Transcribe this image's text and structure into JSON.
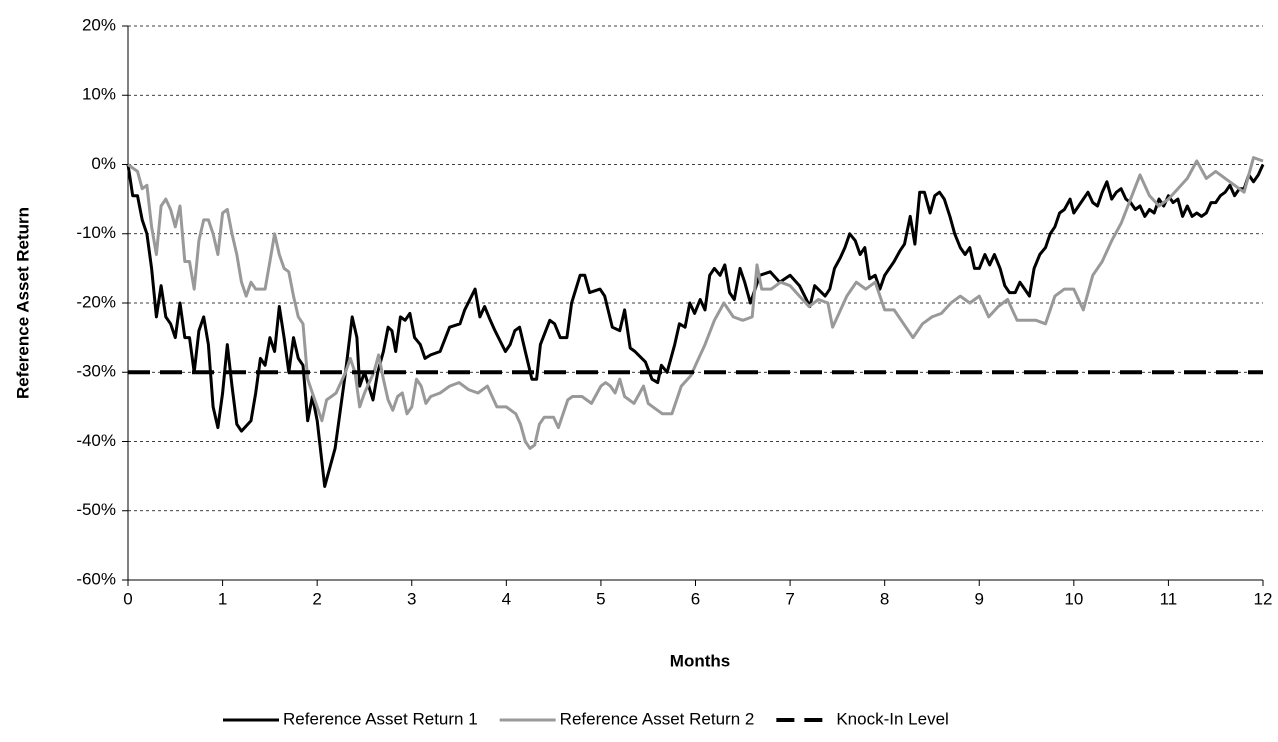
{
  "chart_data": {
    "type": "line",
    "xlabel": "Months",
    "ylabel": "Reference Asset Return",
    "xlim": [
      0,
      12
    ],
    "xticks": [
      0,
      1,
      2,
      3,
      4,
      5,
      6,
      7,
      8,
      9,
      10,
      11,
      12
    ],
    "ylim": [
      -60,
      20
    ],
    "yticks": [
      {
        "value": -60,
        "label": "-60%"
      },
      {
        "value": -50,
        "label": "-50%"
      },
      {
        "value": -40,
        "label": "-40%"
      },
      {
        "value": -30,
        "label": "-30%"
      },
      {
        "value": -20,
        "label": "-20%"
      },
      {
        "value": -10,
        "label": "-10%"
      },
      {
        "value": 0,
        "label": "0%"
      },
      {
        "value": 10,
        "label": "10%"
      },
      {
        "value": 20,
        "label": "20%"
      }
    ],
    "grid": true,
    "legend": "bottom",
    "series": [
      {
        "name": "Reference Asset Return 1",
        "color": "#000000",
        "line_style": "solid",
        "x": [
          0,
          0.05,
          0.1,
          0.15,
          0.2,
          0.25,
          0.3,
          0.35,
          0.4,
          0.45,
          0.5,
          0.55,
          0.6,
          0.65,
          0.7,
          0.75,
          0.8,
          0.85,
          0.9,
          0.95,
          1.0,
          1.05,
          1.1,
          1.15,
          1.2,
          1.3,
          1.35,
          1.4,
          1.45,
          1.5,
          1.55,
          1.6,
          1.65,
          1.7,
          1.75,
          1.8,
          1.85,
          1.9,
          1.95,
          2.0,
          2.08,
          2.19,
          2.3,
          2.37,
          2.42,
          2.45,
          2.5,
          2.59,
          2.64,
          2.7,
          2.75,
          2.79,
          2.83,
          2.88,
          2.93,
          2.98,
          3.03,
          3.09,
          3.14,
          3.2,
          3.3,
          3.4,
          3.51,
          3.56,
          3.67,
          3.72,
          3.77,
          3.83,
          3.88,
          3.99,
          4.04,
          4.09,
          4.14,
          4.2,
          4.27,
          4.32,
          4.36,
          4.46,
          4.51,
          4.57,
          4.64,
          4.69,
          4.78,
          4.83,
          4.88,
          4.99,
          5.04,
          5.12,
          5.2,
          5.25,
          5.31,
          5.36,
          5.47,
          5.54,
          5.6,
          5.64,
          5.7,
          5.78,
          5.83,
          5.89,
          5.94,
          5.99,
          6.05,
          6.1,
          6.15,
          6.2,
          6.26,
          6.31,
          6.36,
          6.41,
          6.47,
          6.52,
          6.58,
          6.68,
          6.79,
          6.89,
          7.0,
          7.1,
          7.21,
          7.26,
          7.37,
          7.42,
          7.47,
          7.53,
          7.58,
          7.63,
          7.69,
          7.74,
          7.79,
          7.84,
          7.9,
          7.95,
          8.0,
          8.05,
          8.1,
          8.16,
          8.21,
          8.27,
          8.32,
          8.37,
          8.42,
          8.48,
          8.53,
          8.58,
          8.63,
          8.69,
          8.74,
          8.8,
          8.85,
          8.9,
          8.95,
          9.0,
          9.06,
          9.11,
          9.16,
          9.22,
          9.27,
          9.32,
          9.38,
          9.43,
          9.48,
          9.53,
          9.58,
          9.64,
          9.7,
          9.75,
          9.8,
          9.85,
          9.9,
          9.96,
          10.0,
          10.05,
          10.1,
          10.15,
          10.2,
          10.25,
          10.3,
          10.35,
          10.4,
          10.45,
          10.5,
          10.55,
          10.6,
          10.65,
          10.7,
          10.75,
          10.8,
          10.85,
          10.9,
          10.95,
          11.0,
          11.05,
          11.1,
          11.15,
          11.2,
          11.25,
          11.3,
          11.35,
          11.4,
          11.45,
          11.5,
          11.55,
          11.6,
          11.65,
          11.7,
          11.75,
          11.8,
          11.85,
          11.9,
          11.95,
          12.0
        ],
        "values": [
          0,
          -4.5,
          -4.5,
          -8,
          -10,
          -15,
          -22,
          -17.5,
          -22,
          -23,
          -25,
          -20,
          -25,
          -25,
          -30,
          -24,
          -22,
          -26,
          -35,
          -38,
          -33,
          -26,
          -32,
          -37.5,
          -38.5,
          -37,
          -33,
          -28,
          -29,
          -25,
          -27,
          -20.5,
          -25,
          -30,
          -25,
          -28,
          -29,
          -37,
          -33.5,
          -37,
          -46.5,
          -41,
          -30,
          -22,
          -25,
          -32,
          -30,
          -34,
          -30,
          -27,
          -23.5,
          -24,
          -27,
          -22,
          -22.5,
          -21.5,
          -25,
          -26,
          -28,
          -27.5,
          -27,
          -23.5,
          -23,
          -21,
          -18,
          -22,
          -20.5,
          -22.5,
          -24,
          -27,
          -26,
          -24,
          -23.5,
          -27,
          -31,
          -31,
          -26,
          -22.5,
          -23,
          -25,
          -25,
          -20,
          -16,
          -16,
          -18.5,
          -18,
          -19,
          -23.5,
          -24,
          -21,
          -26.5,
          -27,
          -28.5,
          -31,
          -31.5,
          -29,
          -30,
          -26,
          -23,
          -23.5,
          -20,
          -21.5,
          -19.5,
          -21,
          -16,
          -15,
          -16,
          -14.5,
          -18.5,
          -19.5,
          -15,
          -17,
          -20,
          -16,
          -15.5,
          -17,
          -16,
          -17.5,
          -20.5,
          -17.5,
          -19,
          -18,
          -15,
          -13.5,
          -12,
          -10,
          -11,
          -13,
          -12,
          -16.5,
          -16,
          -18,
          -16,
          -15,
          -14,
          -12.5,
          -11.5,
          -7.5,
          -11.5,
          -4,
          -4,
          -7,
          -4.5,
          -4,
          -5,
          -7.5,
          -10,
          -12,
          -13,
          -12,
          -15,
          -15,
          -13,
          -14.5,
          -13,
          -15,
          -17.5,
          -18.5,
          -18.5,
          -17,
          -18,
          -19,
          -15,
          -13,
          -12,
          -10,
          -9,
          -7,
          -6.5,
          -5,
          -7,
          -6,
          -5,
          -4,
          -5.5,
          -6,
          -4,
          -2.5,
          -5,
          -4,
          -3.5,
          -5,
          -5.5,
          -6.5,
          -6,
          -7.5,
          -6.5,
          -7,
          -5,
          -6,
          -4.5,
          -5.5,
          -5,
          -7.5,
          -6,
          -7.5,
          -7,
          -7.5,
          -7,
          -5.5,
          -5.5,
          -4.5,
          -4,
          -3,
          -4.5,
          -3.5,
          -3.5,
          -1.5,
          -2.5,
          -1.5,
          0
        ]
      },
      {
        "name": "Reference Asset Return 2",
        "color": "#999999",
        "line_style": "solid",
        "x": [
          0,
          0.05,
          0.1,
          0.15,
          0.2,
          0.25,
          0.3,
          0.35,
          0.4,
          0.45,
          0.5,
          0.55,
          0.6,
          0.65,
          0.7,
          0.75,
          0.8,
          0.85,
          0.9,
          0.95,
          1.0,
          1.05,
          1.1,
          1.15,
          1.2,
          1.25,
          1.3,
          1.35,
          1.45,
          1.5,
          1.55,
          1.6,
          1.65,
          1.7,
          1.75,
          1.8,
          1.85,
          1.9,
          1.95,
          2.0,
          2.05,
          2.1,
          2.15,
          2.2,
          2.3,
          2.35,
          2.4,
          2.45,
          2.5,
          2.6,
          2.65,
          2.7,
          2.75,
          2.8,
          2.85,
          2.9,
          2.95,
          3.0,
          3.05,
          3.1,
          3.15,
          3.2,
          3.3,
          3.4,
          3.5,
          3.6,
          3.7,
          3.8,
          3.9,
          4.0,
          4.1,
          4.15,
          4.2,
          4.25,
          4.3,
          4.35,
          4.4,
          4.5,
          4.55,
          4.65,
          4.7,
          4.8,
          4.9,
          5.0,
          5.05,
          5.1,
          5.15,
          5.2,
          5.25,
          5.35,
          5.45,
          5.5,
          5.55,
          5.65,
          5.75,
          5.85,
          5.95,
          6.0,
          6.1,
          6.2,
          6.3,
          6.4,
          6.5,
          6.6,
          6.65,
          6.7,
          6.8,
          6.9,
          7.0,
          7.1,
          7.2,
          7.3,
          7.4,
          7.45,
          7.5,
          7.6,
          7.7,
          7.8,
          7.9,
          8.0,
          8.1,
          8.2,
          8.3,
          8.4,
          8.5,
          8.6,
          8.7,
          8.8,
          8.9,
          9.0,
          9.1,
          9.2,
          9.3,
          9.4,
          9.5,
          9.6,
          9.7,
          9.8,
          9.9,
          10.0,
          10.1,
          10.2,
          10.3,
          10.4,
          10.5,
          10.6,
          10.7,
          10.8,
          10.9,
          11.0,
          11.1,
          11.2,
          11.3,
          11.4,
          11.5,
          11.6,
          11.7,
          11.8,
          11.9,
          12.0
        ],
        "values": [
          0,
          -0.5,
          -1,
          -3.5,
          -3,
          -9,
          -13,
          -6,
          -5,
          -6.5,
          -9,
          -6,
          -14,
          -14,
          -18,
          -11,
          -8,
          -8,
          -10,
          -13,
          -7,
          -6.5,
          -10,
          -13,
          -17,
          -19,
          -17,
          -18,
          -18,
          -14,
          -10,
          -13,
          -15,
          -15.5,
          -19,
          -22,
          -23,
          -31,
          -33,
          -35,
          -37,
          -34,
          -33.5,
          -33,
          -30,
          -28,
          -30,
          -35,
          -33,
          -30,
          -27.5,
          -31,
          -34,
          -35.5,
          -33.5,
          -33,
          -36,
          -35,
          -31,
          -32,
          -34.5,
          -33.5,
          -33,
          -32,
          -31.5,
          -32.5,
          -33,
          -32,
          -35,
          -35,
          -36,
          -37.5,
          -40,
          -41,
          -40.5,
          -37.5,
          -36.5,
          -36.5,
          -38,
          -34,
          -33.5,
          -33.5,
          -34.5,
          -32,
          -31.5,
          -32,
          -33,
          -31,
          -33.5,
          -34.5,
          -32,
          -34.5,
          -35,
          -36,
          -36,
          -32,
          -30.5,
          -29,
          -26,
          -22.5,
          -20,
          -22,
          -22.5,
          -22,
          -14.5,
          -18,
          -18,
          -17,
          -17.5,
          -19,
          -20.5,
          -19.5,
          -20,
          -23.5,
          -22,
          -19,
          -17,
          -18,
          -17,
          -21,
          -21,
          -23,
          -25,
          -23,
          -22,
          -21.5,
          -20,
          -19,
          -20,
          -19,
          -22,
          -20.5,
          -19.5,
          -22.5,
          -22.5,
          -22.5,
          -23,
          -19,
          -18,
          -18,
          -21,
          -16,
          -14,
          -11,
          -8.5,
          -5,
          -1.5,
          -4.5,
          -6,
          -5,
          -3.5,
          -2,
          0.5,
          -2,
          -1,
          -2,
          -3,
          -4,
          1,
          0.5
        ]
      },
      {
        "name": "Knock-In Level",
        "color": "#000000",
        "line_style": "dashed",
        "x": [
          0,
          12
        ],
        "values": [
          -30,
          -30
        ]
      }
    ]
  }
}
